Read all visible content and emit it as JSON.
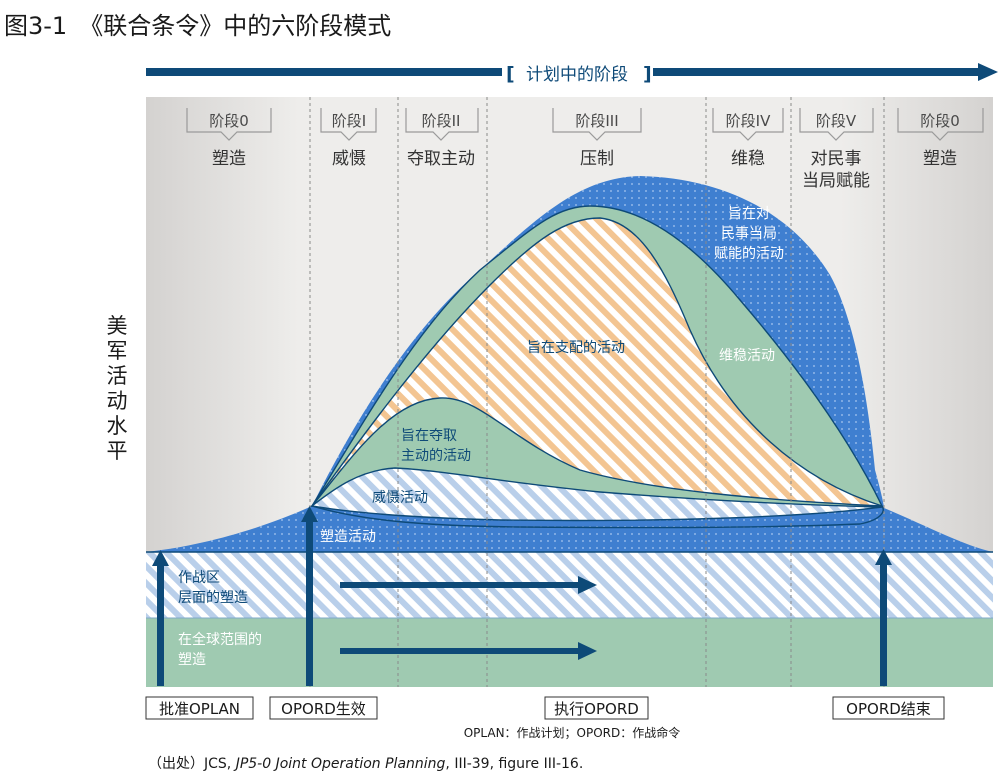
{
  "figure": {
    "title": "图3-1　《联合条令》中的六阶段模式",
    "plan_label": "计划中的阶段",
    "y_axis_chars": [
      "美",
      "军",
      "活",
      "动",
      "水",
      "平"
    ],
    "source_prefix": "（出处）JCS, ",
    "source_italic": "JP5-0 Joint Operation Planning",
    "source_suffix": ", III-39, figure III-16.",
    "abbrev_note": "OPLAN：作战计划；OPORD：作战命令"
  },
  "phases": [
    {
      "code": "阶段0",
      "name": [
        "塑造"
      ]
    },
    {
      "code": "阶段I",
      "name": [
        "威慑"
      ]
    },
    {
      "code": "阶段II",
      "name": [
        "夺取主动"
      ]
    },
    {
      "code": "阶段III",
      "name": [
        "压制"
      ]
    },
    {
      "code": "阶段IV",
      "name": [
        "维稳"
      ]
    },
    {
      "code": "阶段V",
      "name": [
        "对民事",
        "当局赋能"
      ]
    },
    {
      "code": "阶段0",
      "name": [
        "塑造"
      ]
    }
  ],
  "activities": {
    "civil": [
      "旨在对",
      "民事当局",
      "赋能的活动"
    ],
    "dominate": "旨在支配的活动",
    "stabilize": "维稳活动",
    "seize": [
      "旨在夺取",
      "主动的活动"
    ],
    "deter": "威慑活动",
    "shape": "塑造活动"
  },
  "bands": {
    "theater": [
      "作战区",
      "层面的塑造"
    ],
    "global": [
      "在全球范围的",
      "塑造"
    ]
  },
  "milestones": {
    "approve": "批准OPLAN",
    "effective": "OPORD生效",
    "execute": "执行OPORD",
    "end": "OPORD结束"
  },
  "colors": {
    "navy": "#0e4a78",
    "blue": "#3f7fd0",
    "green": "#9fcab1",
    "orange": "#f3c592",
    "grey_bg": "#e9e7e5"
  }
}
